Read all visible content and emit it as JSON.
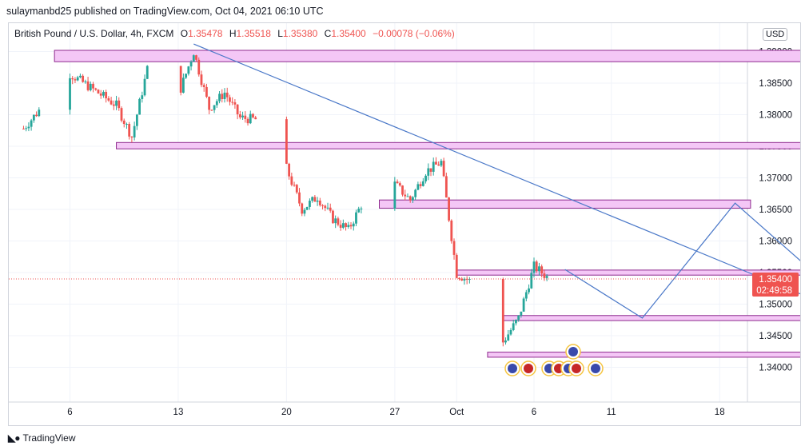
{
  "published_line": "sulaymanbd25 published on TradingView.com, Oct 04, 2021 06:10 UTC",
  "legend": {
    "symbol": "British Pound / U.S. Dollar, 4h, FXCM",
    "open_label": "O",
    "open": "1.35478",
    "high_label": "H",
    "high": "1.35518",
    "low_label": "L",
    "low": "1.35380",
    "close_label": "C",
    "close": "1.35400",
    "change": "−0.00078 (−0.06%)"
  },
  "currency": "USD",
  "footer": {
    "brand": "TradingView"
  },
  "colors": {
    "up": "#26a69a",
    "down": "#ef5350",
    "zone_fill": "#f4c7f6",
    "zone_stroke": "#8e2a8e",
    "trendline": "#4a78c8",
    "price_tag": "#ef5350"
  },
  "chart_data": {
    "type": "candlestick",
    "timeframe": "4h",
    "x_tick_labels": [
      "6",
      "13",
      "20",
      "27",
      "Oct",
      "6",
      "11",
      "18"
    ],
    "y_tick_labels": [
      "1.39000",
      "1.38500",
      "1.38000",
      "1.37500",
      "1.37000",
      "1.36500",
      "1.36000",
      "1.35500",
      "1.35000",
      "1.34500",
      "1.34000"
    ],
    "ylim": [
      1.3345,
      1.3945
    ],
    "last_price": "1.35400",
    "countdown": "02:49:58",
    "anchors": [
      [
        "Sep 3",
        1.3778
      ],
      [
        "Sep 6",
        1.3865
      ],
      [
        "Sep 9",
        1.3815
      ],
      [
        "Sep 10",
        1.3765
      ],
      [
        "Sep 11",
        1.3872
      ],
      [
        "Sep 13",
        1.383
      ],
      [
        "Sep 14",
        1.39
      ],
      [
        "Sep 15",
        1.381
      ],
      [
        "Sep 16",
        1.3835
      ],
      [
        "Sep 17",
        1.3795
      ],
      [
        "Sep 19",
        1.379
      ],
      [
        "Sep 20",
        1.3715
      ],
      [
        "Sep 21",
        1.365
      ],
      [
        "Sep 22",
        1.367
      ],
      [
        "Sep 23",
        1.3635
      ],
      [
        "Sep 24",
        1.3618
      ],
      [
        "Sep 25",
        1.3665
      ],
      [
        "Sep 26",
        1.3738
      ],
      [
        "Sep 27",
        1.369
      ],
      [
        "Sep 28",
        1.3665
      ],
      [
        "Sep 29",
        1.371
      ],
      [
        "Sep 30",
        1.3725
      ],
      [
        "Oct 1",
        1.3548
      ],
      [
        "Oct 2",
        1.3535
      ],
      [
        "Oct 3",
        1.343
      ],
      [
        "Oct 4",
        1.344
      ],
      [
        "Oct 5",
        1.3478
      ],
      [
        "Oct 6",
        1.356
      ],
      [
        "Oct 7",
        1.354
      ]
    ],
    "zones": [
      {
        "from": "Sep 5",
        "to": "Nov 1",
        "low": 1.3884,
        "high": 1.3902
      },
      {
        "from": "Sep 9",
        "to": "Oct 28",
        "low": 1.3746,
        "high": 1.3756
      },
      {
        "from": "Sep 26",
        "to": "Oct 20",
        "low": 1.3652,
        "high": 1.3665
      },
      {
        "from": "Oct 1",
        "to": "Oct 24",
        "low": 1.3546,
        "high": 1.3554
      },
      {
        "from": "Oct 4",
        "to": "Oct 24",
        "low": 1.3474,
        "high": 1.3482
      },
      {
        "from": "Oct 3",
        "to": "Oct 24",
        "low": 1.3416,
        "high": 1.3424
      }
    ],
    "trendline": [
      [
        "Sep 14",
        1.3912
      ],
      [
        "Oct 28",
        1.3468
      ]
    ],
    "projection": [
      [
        "Oct 8",
        1.3555
      ],
      [
        "Oct 13",
        1.3478
      ],
      [
        "Oct 19",
        1.366
      ],
      [
        "Oct 24",
        1.3552
      ],
      [
        "Nov 2",
        1.39
      ]
    ]
  }
}
